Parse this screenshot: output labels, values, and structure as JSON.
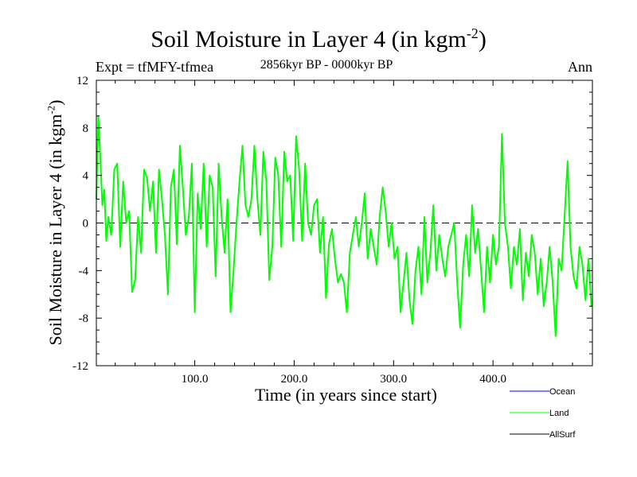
{
  "chart_data": {
    "type": "line",
    "title": "Soil Moisture in Layer 4 (in kgm",
    "title_sup": "-2",
    "title_close": ")",
    "subtitle_left": "Expt = tfMFY-tfmea",
    "subtitle_center": "2856kyr BP - 0000kyr BP",
    "subtitle_right": "Ann",
    "xlabel": "Time (in years since start)",
    "ylabel": "Soil Moisture in Layer 4 (in kgm",
    "ylabel_sup": "-2",
    "ylabel_close": ")",
    "xlim": [
      1,
      500
    ],
    "ylim": [
      -12,
      12
    ],
    "xticks": [
      100,
      200,
      300,
      400
    ],
    "xtick_labels": [
      "100.0",
      "200.0",
      "300.0",
      "400.0"
    ],
    "yticks": [
      12,
      8,
      4,
      0,
      -4,
      -8,
      -12
    ],
    "ytick_labels": [
      "12",
      "8",
      "4",
      "0",
      "-4",
      "-8",
      "-12"
    ],
    "zero_line": "dashed",
    "series": [
      {
        "name": "Ocean",
        "color": "#0000ff",
        "x": [],
        "values": []
      },
      {
        "name": "Land",
        "color": "#00ff00",
        "x": [
          1,
          3,
          5,
          7,
          9,
          11,
          13,
          16,
          19,
          22,
          25,
          28,
          31,
          34,
          37,
          40,
          43,
          46,
          49,
          52,
          55,
          58,
          61,
          64,
          67,
          70,
          73,
          76,
          79,
          82,
          85,
          88,
          91,
          94,
          97,
          100,
          103,
          106,
          109,
          112,
          115,
          118,
          121,
          124,
          127,
          130,
          133,
          136,
          139,
          142,
          145,
          148,
          151,
          154,
          157,
          160,
          163,
          166,
          169,
          172,
          175,
          178,
          181,
          184,
          187,
          190,
          193,
          196,
          199,
          202,
          205,
          208,
          211,
          214,
          217,
          220,
          223,
          226,
          229,
          232,
          235,
          238,
          241,
          244,
          247,
          250,
          253,
          256,
          259,
          262,
          265,
          268,
          271,
          274,
          277,
          280,
          283,
          286,
          289,
          292,
          295,
          298,
          301,
          304,
          307,
          310,
          313,
          316,
          319,
          322,
          325,
          328,
          331,
          334,
          337,
          340,
          343,
          346,
          349,
          352,
          355,
          358,
          361,
          364,
          367,
          370,
          373,
          376,
          379,
          382,
          385,
          388,
          391,
          394,
          397,
          400,
          403,
          406,
          409,
          412,
          415,
          418,
          421,
          424,
          427,
          430,
          433,
          436,
          439,
          442,
          445,
          448,
          451,
          454,
          457,
          460,
          463,
          466,
          469,
          472,
          475,
          478,
          481,
          484,
          487,
          490,
          493,
          496,
          499
        ],
        "values": [
          2.0,
          9.0,
          5.5,
          1.5,
          2.8,
          -1.5,
          0.5,
          -1.0,
          4.5,
          5.0,
          -2.0,
          3.5,
          0.0,
          1.0,
          -5.8,
          -4.8,
          0.5,
          -2.5,
          4.5,
          3.8,
          1.0,
          3.5,
          -2.5,
          4.5,
          2.0,
          -1.0,
          -6.0,
          3.0,
          4.5,
          -1.8,
          6.5,
          3.0,
          -1.0,
          0.5,
          5.0,
          -7.5,
          2.5,
          -0.5,
          5.0,
          -2.0,
          4.0,
          3.0,
          -4.5,
          5.0,
          0.5,
          -2.5,
          2.0,
          -7.5,
          -4.0,
          0.0,
          3.5,
          6.5,
          1.5,
          0.5,
          2.0,
          6.5,
          2.0,
          -1.0,
          6.0,
          3.5,
          -4.8,
          -2.0,
          5.5,
          4.0,
          -2.0,
          6.0,
          3.5,
          4.0,
          -1.5,
          7.3,
          4.5,
          -1.5,
          5.0,
          0.0,
          -1.0,
          1.5,
          2.0,
          -2.5,
          0.5,
          -6.3,
          -1.8,
          -0.5,
          -3.0,
          -5.0,
          -4.3,
          -5.0,
          -7.5,
          -2.5,
          -1.0,
          0.5,
          -2.0,
          0.0,
          2.5,
          -3.0,
          -0.5,
          -2.0,
          -3.5,
          0.5,
          3.0,
          1.0,
          -2.0,
          0.0,
          -3.0,
          -2.0,
          -7.5,
          -5.0,
          -2.5,
          -6.5,
          -8.5,
          -4.0,
          -2.0,
          -6.0,
          0.5,
          -5.0,
          -2.5,
          1.5,
          -4.0,
          -1.0,
          -3.0,
          -4.5,
          -2.0,
          -1.0,
          0.0,
          -5.0,
          -8.8,
          -3.5,
          -1.0,
          -4.5,
          1.5,
          -2.5,
          -0.5,
          -4.0,
          -7.5,
          -2.0,
          -5.0,
          -1.0,
          -3.5,
          -2.0,
          7.5,
          0.0,
          -2.0,
          -5.5,
          -2.0,
          -3.5,
          -0.5,
          -6.5,
          -2.5,
          -4.5,
          -1.0,
          -2.5,
          -6.0,
          -3.0,
          -7.0,
          -5.0,
          -2.0,
          -5.0,
          -9.5,
          -3.0,
          -4.0,
          0.5,
          5.2,
          -2.0,
          -4.5,
          -5.5,
          -2.0,
          -3.5,
          -6.5,
          -3.0,
          -7.0
        ]
      },
      {
        "name": "AllSurf",
        "color": "#000000",
        "x": [],
        "values": []
      }
    ],
    "legend_position": "bottom-right"
  }
}
